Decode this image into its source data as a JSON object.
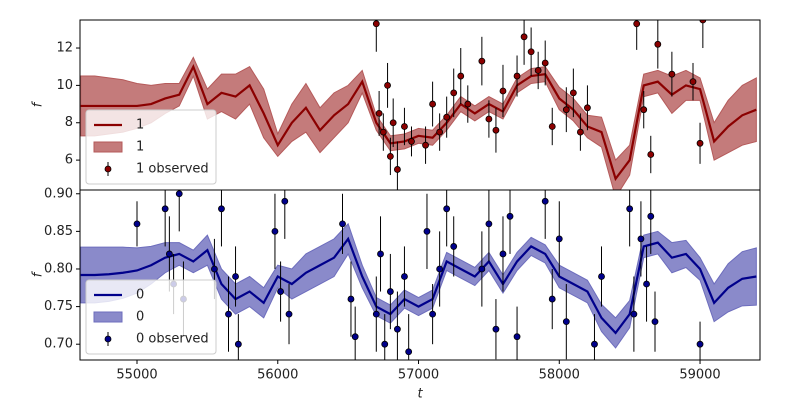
{
  "chart_data": [
    {
      "type": "gp",
      "ylabel": "f",
      "x": [
        54600,
        54700,
        54800,
        54900,
        55000,
        55100,
        55200,
        55300,
        55400,
        55500,
        55600,
        55700,
        55800,
        55900,
        56000,
        56100,
        56200,
        56300,
        56400,
        56500,
        56600,
        56700,
        56800,
        56900,
        57000,
        57100,
        57200,
        57300,
        57400,
        57500,
        57600,
        57700,
        57800,
        57900,
        58000,
        58100,
        58200,
        58300,
        58400,
        58500,
        58600,
        58700,
        58800,
        58900,
        59000,
        59100,
        59200,
        59300,
        59400
      ],
      "series": [
        {
          "name": "1",
          "kind": "line",
          "color": "#8b0000",
          "values": [
            8.9,
            8.9,
            8.9,
            8.9,
            8.9,
            9.0,
            9.3,
            9.5,
            11.0,
            9.0,
            9.6,
            9.4,
            10.0,
            8.5,
            6.8,
            8.0,
            8.8,
            7.6,
            8.4,
            9.0,
            10.2,
            8.0,
            6.9,
            7.0,
            7.3,
            7.2,
            8.0,
            9.0,
            8.5,
            9.0,
            8.6,
            10.0,
            10.5,
            10.6,
            9.3,
            8.7,
            7.8,
            7.5,
            5.0,
            6.0,
            10.0,
            10.2,
            9.5,
            10.0,
            9.8,
            7.0,
            7.8,
            8.4,
            8.7
          ]
        },
        {
          "name": "1",
          "kind": "band",
          "color": "#b55a5a",
          "lower": [
            7.3,
            7.3,
            7.4,
            7.5,
            7.7,
            8.0,
            8.5,
            8.9,
            10.5,
            8.2,
            8.6,
            8.2,
            9.0,
            7.2,
            6.2,
            7.0,
            7.5,
            6.4,
            7.2,
            8.0,
            9.6,
            7.6,
            6.5,
            6.6,
            6.9,
            6.8,
            7.6,
            8.6,
            8.1,
            8.6,
            8.2,
            9.6,
            10.1,
            10.2,
            8.7,
            8.1,
            7.2,
            6.7,
            4.0,
            5.2,
            9.4,
            9.6,
            8.5,
            9.2,
            9.2,
            6.0,
            6.4,
            6.8,
            7.0
          ],
          "upper": [
            10.5,
            10.5,
            10.4,
            10.3,
            10.1,
            10.0,
            10.1,
            10.1,
            11.5,
            9.8,
            10.6,
            10.6,
            11.0,
            9.8,
            7.4,
            9.0,
            10.1,
            8.8,
            9.6,
            10.0,
            10.8,
            8.4,
            7.3,
            7.4,
            7.7,
            7.6,
            8.4,
            9.4,
            8.9,
            9.4,
            9.0,
            10.4,
            10.9,
            11.0,
            9.9,
            9.3,
            8.4,
            8.3,
            6.0,
            6.8,
            10.6,
            10.8,
            10.5,
            10.8,
            10.4,
            8.0,
            9.2,
            10.0,
            10.4
          ]
        },
        {
          "name": "1 observed",
          "kind": "errorbar",
          "color": "#8b0000",
          "x": [
            56700,
            56720,
            56750,
            56780,
            56800,
            56820,
            56850,
            56900,
            56950,
            57050,
            57100,
            57150,
            57200,
            57250,
            57300,
            57350,
            57450,
            57500,
            57550,
            57600,
            57700,
            57750,
            57800,
            57850,
            57900,
            57950,
            58050,
            58100,
            58150,
            58200,
            58550,
            58600,
            58650,
            58700,
            58800,
            58950,
            59000,
            59020
          ],
          "values": [
            13.3,
            8.5,
            7.5,
            10.0,
            6.2,
            8.0,
            5.5,
            7.8,
            7.0,
            6.8,
            9.0,
            7.5,
            8.3,
            9.6,
            10.5,
            9.0,
            11.3,
            8.2,
            7.6,
            9.7,
            10.5,
            12.6,
            11.8,
            10.8,
            11.2,
            7.8,
            8.7,
            9.6,
            7.5,
            8.8,
            13.3,
            8.7,
            6.3,
            12.2,
            10.6,
            10.2,
            6.9,
            13.5
          ],
          "errors": [
            1.5,
            1.2,
            1.0,
            1.2,
            1.0,
            1.3,
            1.5,
            1.0,
            0.8,
            1.0,
            1.2,
            1.0,
            1.1,
            1.3,
            1.5,
            1.0,
            1.3,
            1.0,
            1.2,
            1.4,
            1.1,
            1.5,
            1.3,
            1.0,
            1.2,
            1.0,
            1.2,
            1.3,
            1.0,
            1.2,
            1.4,
            1.0,
            1.0,
            1.3,
            1.2,
            1.0,
            1.1,
            1.5
          ]
        }
      ],
      "xlim": [
        54595,
        59426
      ],
      "ylim": [
        4.4,
        13.5
      ],
      "yticks": [
        6,
        8,
        10,
        12
      ],
      "legend": "lower left"
    },
    {
      "type": "gp",
      "ylabel": "f",
      "xlabel": "t",
      "x": [
        54600,
        54700,
        54800,
        54900,
        55000,
        55100,
        55200,
        55300,
        55400,
        55500,
        55600,
        55700,
        55800,
        55900,
        56000,
        56100,
        56200,
        56300,
        56400,
        56500,
        56600,
        56700,
        56800,
        56900,
        57000,
        57100,
        57200,
        57300,
        57400,
        57500,
        57600,
        57700,
        57800,
        57900,
        58000,
        58100,
        58200,
        58300,
        58400,
        58500,
        58600,
        58700,
        58800,
        58900,
        59000,
        59100,
        59200,
        59300,
        59400
      ],
      "series": [
        {
          "name": "0",
          "kind": "line",
          "color": "#00008b",
          "values": [
            0.792,
            0.792,
            0.793,
            0.795,
            0.798,
            0.805,
            0.815,
            0.82,
            0.81,
            0.825,
            0.78,
            0.76,
            0.77,
            0.755,
            0.79,
            0.78,
            0.795,
            0.805,
            0.815,
            0.84,
            0.79,
            0.75,
            0.74,
            0.76,
            0.75,
            0.76,
            0.81,
            0.8,
            0.79,
            0.81,
            0.78,
            0.81,
            0.83,
            0.82,
            0.79,
            0.78,
            0.77,
            0.735,
            0.715,
            0.74,
            0.83,
            0.835,
            0.815,
            0.82,
            0.8,
            0.755,
            0.775,
            0.787,
            0.79
          ]
        },
        {
          "name": "0",
          "kind": "band",
          "color": "#6d6dbd",
          "lower": [
            0.755,
            0.755,
            0.757,
            0.761,
            0.768,
            0.78,
            0.795,
            0.805,
            0.795,
            0.805,
            0.76,
            0.74,
            0.75,
            0.735,
            0.775,
            0.76,
            0.77,
            0.78,
            0.79,
            0.82,
            0.775,
            0.738,
            0.728,
            0.748,
            0.738,
            0.748,
            0.798,
            0.788,
            0.778,
            0.798,
            0.768,
            0.798,
            0.818,
            0.808,
            0.775,
            0.765,
            0.755,
            0.717,
            0.695,
            0.722,
            0.815,
            0.82,
            0.795,
            0.802,
            0.785,
            0.73,
            0.743,
            0.751,
            0.752
          ],
          "upper": [
            0.829,
            0.829,
            0.829,
            0.829,
            0.828,
            0.83,
            0.835,
            0.835,
            0.825,
            0.845,
            0.8,
            0.78,
            0.79,
            0.775,
            0.805,
            0.8,
            0.82,
            0.83,
            0.84,
            0.86,
            0.805,
            0.762,
            0.752,
            0.772,
            0.762,
            0.772,
            0.822,
            0.812,
            0.802,
            0.822,
            0.792,
            0.822,
            0.842,
            0.832,
            0.805,
            0.795,
            0.785,
            0.753,
            0.735,
            0.758,
            0.845,
            0.85,
            0.835,
            0.838,
            0.815,
            0.78,
            0.807,
            0.823,
            0.828
          ]
        },
        {
          "name": "0 observed",
          "kind": "errorbar",
          "color": "#00008b",
          "x": [
            55000,
            55200,
            55230,
            55260,
            55300,
            55330,
            55550,
            55600,
            55650,
            55700,
            55720,
            55980,
            56020,
            56050,
            56080,
            56460,
            56520,
            56550,
            56700,
            56730,
            56760,
            56800,
            56850,
            56900,
            56930,
            57060,
            57100,
            57150,
            57200,
            57250,
            57450,
            57500,
            57550,
            57600,
            57650,
            57700,
            57900,
            57950,
            58000,
            58050,
            58250,
            58300,
            58500,
            58530,
            58580,
            58620,
            58650,
            58680,
            59000
          ],
          "values": [
            0.86,
            0.88,
            0.82,
            0.78,
            0.9,
            0.76,
            0.8,
            0.88,
            0.74,
            0.79,
            0.7,
            0.85,
            0.77,
            0.89,
            0.74,
            0.86,
            0.76,
            0.71,
            0.74,
            0.82,
            0.7,
            0.77,
            0.72,
            0.79,
            0.69,
            0.85,
            0.74,
            0.8,
            0.88,
            0.83,
            0.8,
            0.86,
            0.72,
            0.82,
            0.87,
            0.71,
            0.89,
            0.76,
            0.84,
            0.73,
            0.7,
            0.79,
            0.88,
            0.74,
            0.84,
            0.78,
            0.87,
            0.73,
            0.7
          ],
          "errors": [
            0.03,
            0.05,
            0.05,
            0.04,
            0.05,
            0.05,
            0.04,
            0.05,
            0.05,
            0.04,
            0.04,
            0.05,
            0.04,
            0.05,
            0.04,
            0.04,
            0.05,
            0.04,
            0.05,
            0.05,
            0.04,
            0.05,
            0.05,
            0.04,
            0.05,
            0.05,
            0.04,
            0.05,
            0.05,
            0.04,
            0.05,
            0.05,
            0.04,
            0.05,
            0.05,
            0.04,
            0.05,
            0.04,
            0.05,
            0.05,
            0.04,
            0.04,
            0.05,
            0.05,
            0.05,
            0.05,
            0.05,
            0.04,
            0.03
          ]
        }
      ],
      "xlim": [
        54595,
        59426
      ],
      "ylim": [
        0.679,
        0.905
      ],
      "xticks": [
        55000,
        56000,
        57000,
        58000,
        59000
      ],
      "yticks": [
        {
          "value": 0.7,
          "label": "0.70"
        },
        0.75,
        {
          "value": 0.8,
          "label": "0.80"
        },
        0.85,
        {
          "value": 0.9,
          "label": "0.90"
        }
      ],
      "legend": "lower left"
    }
  ]
}
